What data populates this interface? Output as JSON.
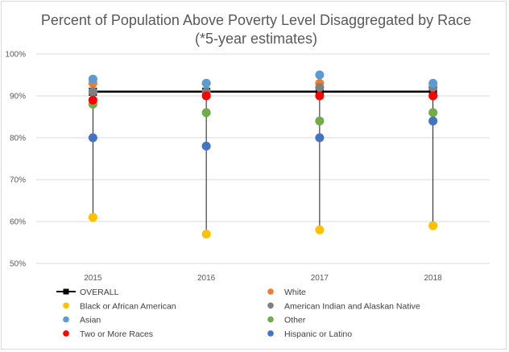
{
  "chart_data": {
    "type": "scatter",
    "title": "Percent of Population Above Poverty Level Disaggregated by Race",
    "subtitle": "(*5-year estimates)",
    "x": [
      "2015",
      "2016",
      "2017",
      "2018"
    ],
    "ylim": [
      50,
      100
    ],
    "y_ticks": [
      "50%",
      "60%",
      "70%",
      "80%",
      "90%",
      "100%"
    ],
    "grid": true,
    "legend_position": "bottom",
    "series": [
      {
        "name": "OVERALL",
        "color": "#000000",
        "marker": "square-line",
        "values": [
          91,
          91,
          91,
          91
        ]
      },
      {
        "name": "White",
        "color": "#ED7D31",
        "marker": "circle",
        "values": [
          93,
          93,
          93,
          92
        ]
      },
      {
        "name": "Black or African American",
        "color": "#FFC000",
        "marker": "circle",
        "values": [
          61,
          57,
          58,
          59
        ]
      },
      {
        "name": "American Indian and Alaskan Native",
        "color": "#7F7F7F",
        "marker": "circle",
        "values": [
          91,
          91,
          92,
          92
        ]
      },
      {
        "name": "Asian",
        "color": "#5B9BD5",
        "marker": "circle",
        "values": [
          94,
          93,
          95,
          93
        ]
      },
      {
        "name": "Other",
        "color": "#70AD47",
        "marker": "circle",
        "values": [
          88,
          86,
          84,
          86
        ]
      },
      {
        "name": "Two or More Races",
        "color": "#FF0000",
        "marker": "circle",
        "values": [
          89,
          90,
          90,
          90
        ]
      },
      {
        "name": "Hispanic or Latino",
        "color": "#4472C4",
        "marker": "circle",
        "values": [
          80,
          78,
          80,
          84
        ]
      }
    ]
  }
}
